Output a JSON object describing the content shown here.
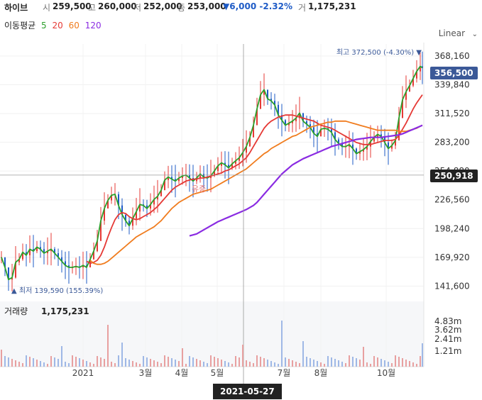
{
  "header": {
    "name": "하이브",
    "open_label": "시",
    "open": "259,500",
    "high_label": "고",
    "high": "260,000",
    "low_label": "저",
    "low": "252,000",
    "close_label": "종",
    "close": "253,000",
    "change": "▼6,000 -2.32%",
    "volume_label": "거",
    "volume": "1,175,231"
  },
  "ma_legend": {
    "title": "이동평균",
    "items": [
      "5",
      "20",
      "60",
      "120"
    ]
  },
  "scale_mode": "Linear",
  "colors": {
    "ma5": "#2ca02c",
    "ma20": "#e53935",
    "ma60": "#f07c1e",
    "ma120": "#8a2be2",
    "up": "#e53935",
    "down": "#1e5bc6",
    "price_badge": "#3b5998"
  },
  "chart_data": {
    "type": "line",
    "ylim": [
      130000,
      380000
    ],
    "y_ticks": [
      "368,160",
      "339,840",
      "311,520",
      "283,200",
      "254,880",
      "226,560",
      "198,240",
      "169,920",
      "141,600"
    ],
    "x_ticks": [
      "2021",
      "3월",
      "4월",
      "5월",
      "7월",
      "8월",
      "10월"
    ],
    "high_note": "최고 372,500 (-4.30%)",
    "low_note": "최저 139,590 (155.39%)",
    "current_price": "356,500",
    "crosshair_value": "250,918",
    "crosshair_date": "2021-05-27",
    "event_label": "유증",
    "volume_title": "거래량",
    "volume_value": "1,175,231",
    "volume_ticks": [
      "4.83m",
      "3.62m",
      "2.41m",
      "1.21m"
    ],
    "series": [
      {
        "name": "5",
        "x": [
          0,
          5,
          10,
          15,
          20,
          25,
          30,
          35,
          40,
          45,
          50,
          55,
          60,
          65,
          70,
          75,
          80,
          85,
          90,
          95,
          100,
          105,
          110,
          115,
          120,
          125,
          130,
          135,
          140,
          145,
          150,
          155,
          160,
          165,
          170,
          175,
          180,
          185,
          190,
          195,
          200,
          205,
          210,
          215,
          220,
          225,
          230,
          235,
          240,
          245,
          250,
          255,
          260,
          265,
          270,
          275,
          280,
          285,
          290,
          295,
          300,
          305,
          310,
          315,
          320,
          325,
          330,
          335,
          340,
          345,
          350,
          355,
          360,
          365,
          370,
          375,
          380,
          385,
          390,
          395,
          400,
          405,
          410,
          415,
          420,
          425,
          430,
          435,
          440,
          445,
          450,
          455,
          460,
          465,
          470,
          475,
          480,
          485,
          490,
          495,
          500,
          505,
          510,
          515,
          520,
          525,
          530,
          535,
          540,
          545,
          550,
          555,
          560,
          565,
          570,
          575,
          580,
          585,
          590,
          593
        ],
        "y": [
          170000,
          160000,
          148000,
          150000,
          165000,
          168000,
          175000,
          172000,
          178000,
          176000,
          180000,
          178000,
          174000,
          176000,
          178000,
          174000,
          170000,
          166000,
          162000,
          160000,
          160000,
          161000,
          160000,
          162000,
          160000,
          168000,
          176000,
          186000,
          206000,
          218000,
          226000,
          231000,
          232000,
          221000,
          212000,
          206000,
          201000,
          208000,
          215000,
          222000,
          221000,
          218000,
          222000,
          227000,
          230000,
          236000,
          246000,
          249000,
          247000,
          245000,
          248000,
          250000,
          251000,
          248000,
          245000,
          248000,
          252000,
          249000,
          248000,
          250000,
          255000,
          260000,
          263000,
          261000,
          258000,
          262000,
          265000,
          268000,
          273000,
          279000,
          288000,
          300000,
          316000,
          330000,
          335000,
          326000,
          324000,
          320000,
          310000,
          305000,
          300000,
          302000,
          304000,
          307000,
          312000,
          304000,
          301000,
          298000,
          292000,
          289000,
          296000,
          297000,
          296000,
          293000,
          286000,
          282000,
          279000,
          279000,
          281000,
          277000,
          272000,
          274000,
          276000,
          279000,
          284000,
          288000,
          291000,
          289000,
          283000,
          277000,
          280000,
          285000,
          307000,
          325000,
          333000,
          339000,
          346000,
          353000,
          358000,
          356500
        ]
      },
      {
        "name": "20",
        "x": [
          0,
          5,
          10,
          15,
          20,
          25,
          30,
          35,
          40,
          45,
          50,
          55,
          60,
          65,
          70,
          75,
          80,
          85,
          90,
          95,
          100,
          105,
          110,
          115,
          120,
          125,
          130,
          135,
          140,
          145,
          150,
          155,
          160,
          165,
          170,
          175,
          180,
          185,
          190,
          195,
          200,
          205,
          210,
          215,
          220,
          225,
          230,
          235,
          240,
          245,
          250,
          255,
          260,
          265,
          270,
          275,
          280,
          285,
          290,
          295,
          300,
          305,
          310,
          315,
          320,
          325,
          330,
          335,
          340,
          345,
          350,
          355,
          360,
          365,
          370,
          375,
          380,
          385,
          390,
          395,
          400,
          405,
          410,
          415,
          420,
          425,
          430,
          435,
          440,
          445,
          450,
          455,
          460,
          465,
          470,
          475,
          480,
          485,
          490,
          495,
          500,
          505,
          510,
          515,
          520,
          525,
          530,
          535,
          540,
          545,
          550,
          555,
          560,
          565,
          570,
          575,
          580,
          585,
          590,
          593
        ],
        "y": [
          null,
          null,
          null,
          null,
          null,
          null,
          null,
          null,
          null,
          null,
          null,
          null,
          null,
          null,
          null,
          null,
          null,
          null,
          null,
          null,
          null,
          null,
          null,
          null,
          166000,
          164000,
          165000,
          167000,
          172000,
          180000,
          190000,
          199000,
          207000,
          212000,
          214000,
          213000,
          210000,
          208000,
          207000,
          208000,
          210000,
          212000,
          214000,
          217000,
          220000,
          224000,
          228000,
          232000,
          236000,
          239000,
          241000,
          243000,
          245000,
          246000,
          247000,
          247000,
          248000,
          248000,
          249000,
          250000,
          251000,
          252000,
          253000,
          255000,
          256000,
          258000,
          260000,
          262000,
          265000,
          268000,
          273000,
          279000,
          285000,
          291000,
          297000,
          301000,
          304000,
          306000,
          308000,
          309000,
          310000,
          310000,
          310000,
          309000,
          308000,
          307000,
          306000,
          305000,
          304000,
          302000,
          300000,
          299000,
          298000,
          297000,
          295000,
          293000,
          291000,
          289000,
          287000,
          285000,
          283000,
          282000,
          281000,
          281000,
          281000,
          282000,
          283000,
          284000,
          285000,
          285000,
          285000,
          286000,
          290000,
          296000,
          302000,
          309000,
          316000,
          322000,
          327000,
          330000
        ]
      },
      {
        "name": "60",
        "x": [
          125,
          130,
          135,
          140,
          145,
          150,
          155,
          160,
          165,
          170,
          175,
          180,
          185,
          190,
          195,
          200,
          205,
          210,
          215,
          220,
          225,
          230,
          235,
          240,
          245,
          250,
          255,
          260,
          265,
          270,
          275,
          280,
          285,
          290,
          295,
          300,
          305,
          310,
          315,
          320,
          325,
          330,
          335,
          340,
          345,
          350,
          355,
          360,
          365,
          370,
          375,
          380,
          385,
          390,
          395,
          400,
          405,
          410,
          415,
          420,
          425,
          430,
          435,
          440,
          445,
          450,
          455,
          460,
          465,
          470,
          475,
          480,
          485,
          490,
          495,
          500,
          505,
          510,
          515,
          520,
          525,
          530,
          535,
          540,
          545,
          550,
          555,
          560,
          565,
          570,
          575,
          580,
          585,
          590,
          593
        ],
        "y": [
          167000,
          164000,
          163000,
          163000,
          164000,
          166000,
          169000,
          172000,
          175000,
          178000,
          181000,
          184000,
          187000,
          190000,
          192000,
          194000,
          196000,
          198000,
          200000,
          203000,
          206000,
          210000,
          214000,
          218000,
          221000,
          224000,
          226000,
          228000,
          230000,
          232000,
          233000,
          234000,
          235000,
          236000,
          237000,
          239000,
          241000,
          243000,
          245000,
          247000,
          249000,
          251000,
          253000,
          255000,
          257000,
          260000,
          263000,
          266000,
          269000,
          272000,
          274000,
          277000,
          279000,
          281000,
          283000,
          285000,
          287000,
          289000,
          290000,
          292000,
          294000,
          296000,
          298000,
          299000,
          300000,
          301000,
          302000,
          303000,
          303000,
          304000,
          304000,
          304000,
          304000,
          303000,
          302000,
          301000,
          300000,
          299000,
          298000,
          297000,
          296000,
          295000,
          295000,
          295000,
          295000,
          295000,
          295000,
          294000,
          294000,
          294000,
          295000,
          296000,
          297000,
          299000,
          300000
        ]
      },
      {
        "name": "120",
        "x": [
          265,
          270,
          275,
          280,
          285,
          290,
          295,
          300,
          305,
          310,
          315,
          320,
          325,
          330,
          335,
          340,
          345,
          350,
          355,
          360,
          365,
          370,
          375,
          380,
          385,
          390,
          395,
          400,
          405,
          410,
          415,
          420,
          425,
          430,
          435,
          440,
          445,
          450,
          455,
          460,
          465,
          470,
          475,
          480,
          485,
          490,
          495,
          500,
          505,
          510,
          515,
          520,
          525,
          530,
          535,
          540,
          545,
          550,
          555,
          560,
          565,
          570,
          575,
          580,
          585,
          590,
          593
        ],
        "y": [
          191000,
          192000,
          193000,
          195000,
          197000,
          199000,
          201000,
          203000,
          205000,
          206500,
          208000,
          209500,
          211000,
          212500,
          214000,
          215500,
          217000,
          219000,
          221000,
          224000,
          228000,
          232000,
          236000,
          240000,
          244000,
          248000,
          252000,
          255000,
          258000,
          261000,
          263000,
          265000,
          267000,
          268500,
          270000,
          271500,
          273000,
          274500,
          276000,
          277500,
          279000,
          280000,
          281000,
          282000,
          283000,
          284000,
          285000,
          286000,
          286500,
          287000,
          287500,
          288000,
          288000,
          288000,
          288000,
          288500,
          289000,
          289500,
          290000,
          290500,
          291500,
          293000,
          294500,
          296000,
          297500,
          299000,
          300000
        ]
      }
    ]
  }
}
